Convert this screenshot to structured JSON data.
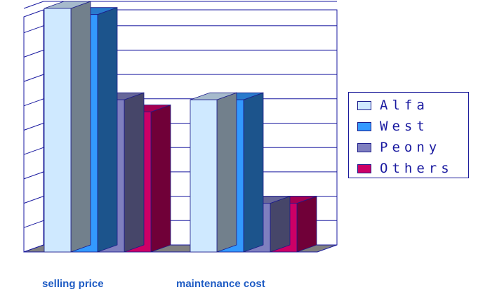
{
  "chart_data": {
    "type": "bar",
    "categories": [
      "selling price",
      "maintenance cost"
    ],
    "series": [
      {
        "name": "Alfa",
        "color": "#cfe9ff",
        "values": [
          4,
          2.5
        ]
      },
      {
        "name": "West",
        "color": "#3399ff",
        "values": [
          3.9,
          2.5
        ]
      },
      {
        "name": "Peony",
        "color": "#7f7fbf",
        "values": [
          2.5,
          0.8
        ]
      },
      {
        "name": "Others",
        "color": "#cc0066",
        "values": [
          2.3,
          0.8
        ]
      }
    ],
    "ylim": [
      0,
      4
    ],
    "grid": true,
    "legend_position": "right"
  }
}
